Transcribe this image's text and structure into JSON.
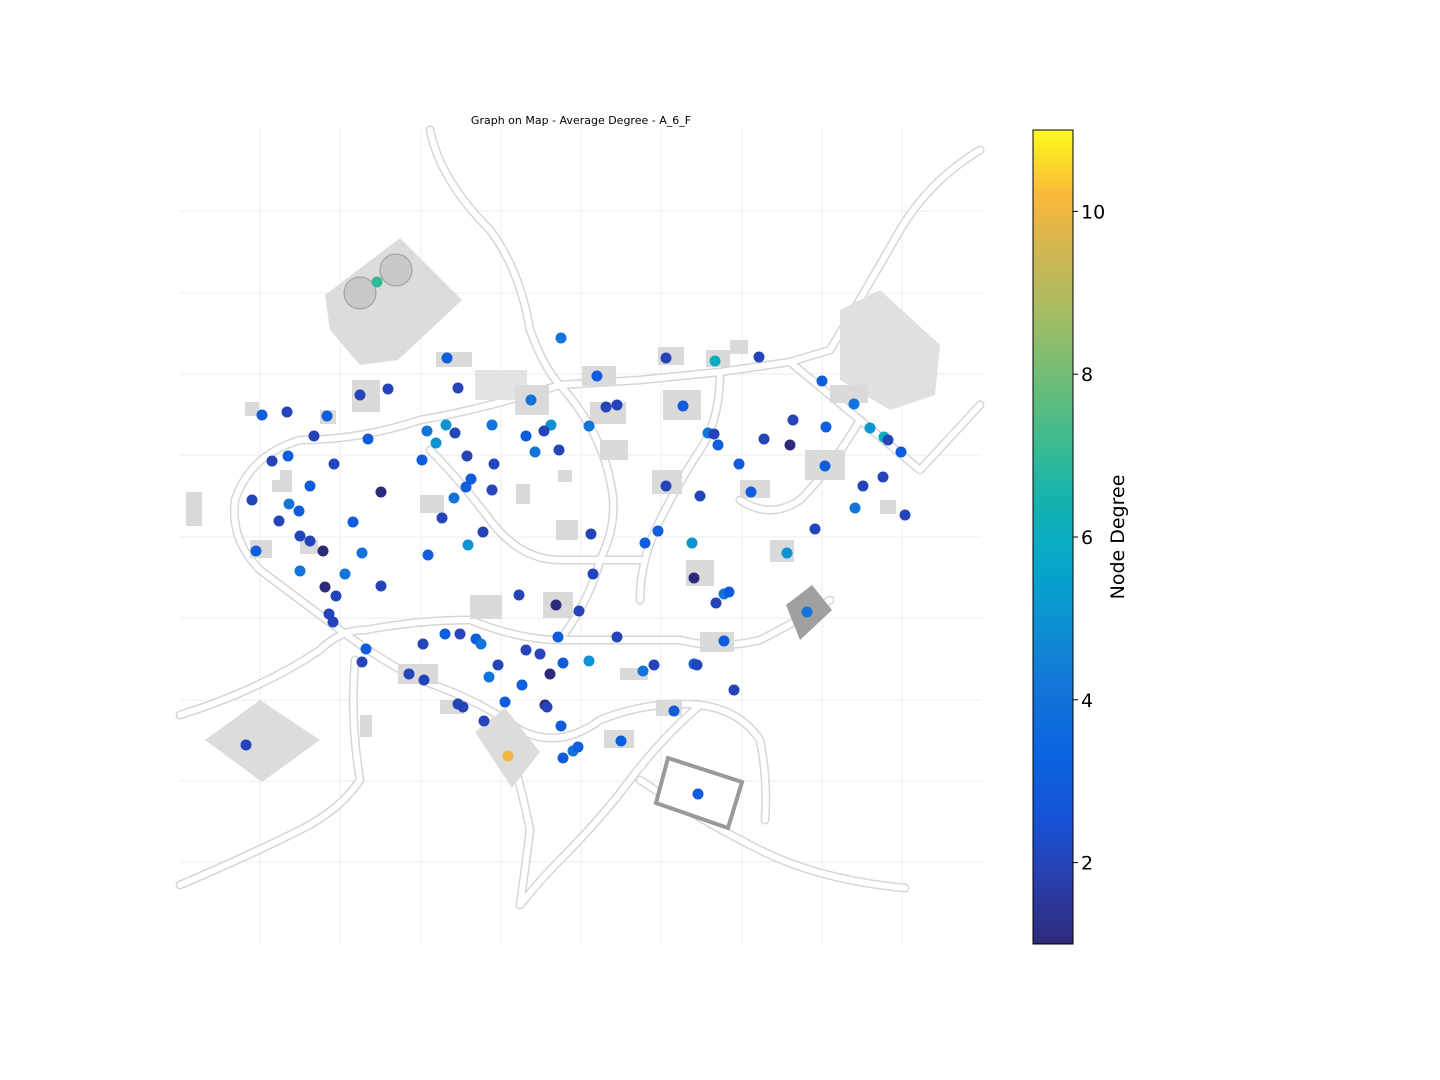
{
  "chart_data": {
    "type": "scatter",
    "title": "Graph on Map - Average Degree - A_6_F",
    "colorbar": {
      "label": "Node Degree",
      "range": [
        1,
        11
      ],
      "ticks": [
        2,
        4,
        6,
        8,
        10
      ],
      "colormap": "viridis-like (dark blue → blue → teal → green → orange → yellow)"
    },
    "grid": true,
    "background": "greyscale map of a village with roads and buildings",
    "node_degrees": [
      7,
      3,
      2,
      2,
      4,
      3,
      2,
      6,
      2,
      3,
      2,
      3,
      2,
      3,
      4,
      4,
      2,
      2,
      3,
      2,
      4,
      3,
      2,
      4,
      5,
      2,
      3,
      5,
      2,
      4,
      4,
      2,
      3,
      2,
      1,
      3,
      5,
      6,
      2,
      3,
      2,
      3,
      2,
      3,
      5,
      2,
      2,
      4,
      2,
      3,
      3,
      2,
      2,
      2,
      4,
      3,
      3,
      1,
      2,
      4,
      3,
      3,
      2,
      2,
      2,
      2,
      3,
      4,
      2,
      2,
      3,
      2,
      2,
      2,
      1,
      4,
      3,
      3,
      5,
      2,
      3,
      3,
      5,
      5,
      4,
      4,
      1,
      2,
      2,
      2,
      2,
      2,
      1,
      2,
      2,
      1,
      2,
      4,
      3,
      4,
      3,
      2,
      2,
      3,
      2,
      3,
      4,
      2,
      2,
      3,
      3,
      5,
      2,
      2,
      4,
      3,
      3,
      2,
      2,
      2,
      4,
      3,
      1,
      2,
      2,
      2,
      3,
      1,
      3,
      2,
      10,
      3,
      4,
      3,
      3,
      3,
      2,
      3,
      2,
      2,
      2,
      3
    ]
  }
}
